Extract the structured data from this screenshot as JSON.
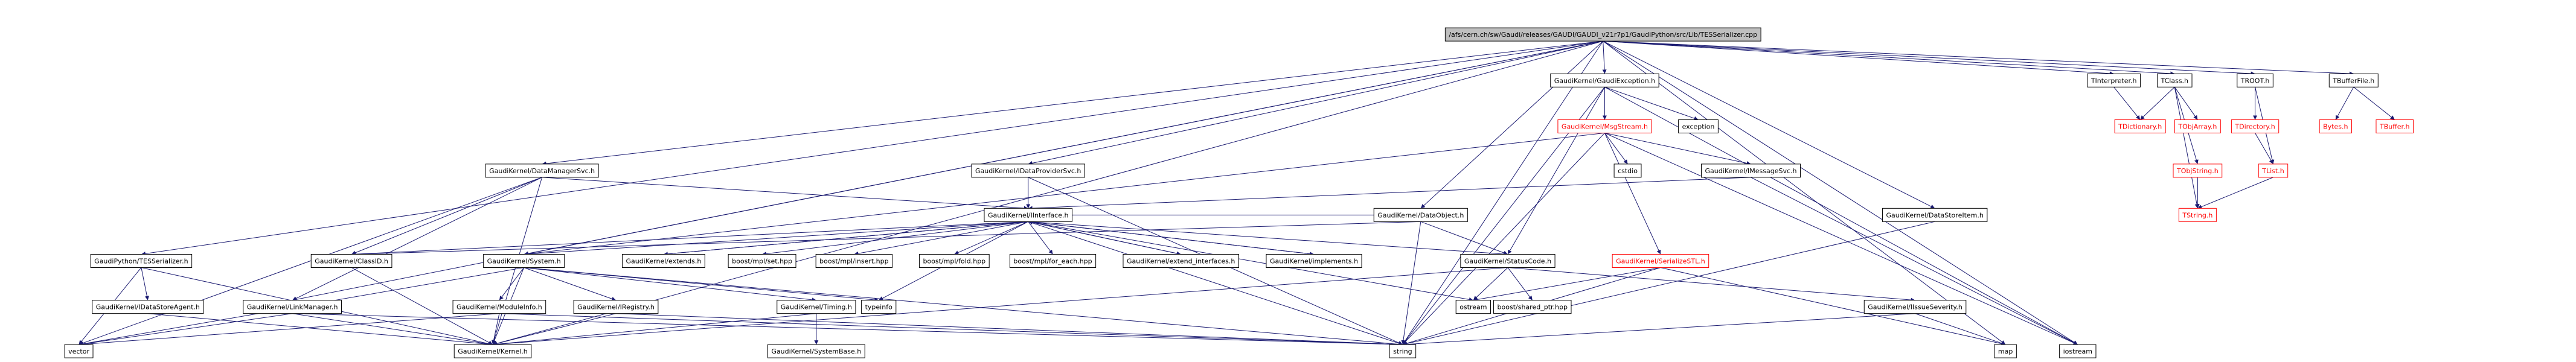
{
  "nodes": [
    {
      "label": "/afs/cern.ch/sw/Gaudi/releases/GAUDI/GAUDI_v21r7p1/GaudiPython/src/Lib/TESSerializer.cpp"
    },
    {
      "label": "GaudiKernel/GaudiException.h"
    },
    {
      "label": "TInterpreter.h"
    },
    {
      "label": "TClass.h"
    },
    {
      "label": "TROOT.h"
    },
    {
      "label": "TBufferFile.h"
    },
    {
      "label": "GaudiKernel/MsgStream.h"
    },
    {
      "label": "exception"
    },
    {
      "label": "TDictionary.h"
    },
    {
      "label": "TObjArray.h"
    },
    {
      "label": "TDirectory.h"
    },
    {
      "label": "Bytes.h"
    },
    {
      "label": "TBuffer.h"
    },
    {
      "label": "GaudiKernel/DataManagerSvc.h"
    },
    {
      "label": "GaudiKernel/IDataProviderSvc.h"
    },
    {
      "label": "cstdio"
    },
    {
      "label": "GaudiKernel/IMessageSvc.h"
    },
    {
      "label": "TObjString.h"
    },
    {
      "label": "TList.h"
    },
    {
      "label": "GaudiKernel/IInterface.h"
    },
    {
      "label": "GaudiKernel/DataObject.h"
    },
    {
      "label": "GaudiKernel/DataStoreItem.h"
    },
    {
      "label": "TString.h"
    },
    {
      "label": "GaudiPython/TESSerializer.h"
    },
    {
      "label": "GaudiKernel/ClassID.h"
    },
    {
      "label": "GaudiKernel/System.h"
    },
    {
      "label": "GaudiKernel/extends.h"
    },
    {
      "label": "boost/mpl/set.hpp"
    },
    {
      "label": "boost/mpl/insert.hpp"
    },
    {
      "label": "boost/mpl/fold.hpp"
    },
    {
      "label": "boost/mpl/for_each.hpp"
    },
    {
      "label": "GaudiKernel/extend_interfaces.h"
    },
    {
      "label": "GaudiKernel/implements.h"
    },
    {
      "label": "GaudiKernel/StatusCode.h"
    },
    {
      "label": "GaudiKernel/SerializeSTL.h"
    },
    {
      "label": "GaudiKernel/IDataStoreAgent.h"
    },
    {
      "label": "GaudiKernel/LinkManager.h"
    },
    {
      "label": "GaudiKernel/ModuleInfo.h"
    },
    {
      "label": "GaudiKernel/IRegistry.h"
    },
    {
      "label": "GaudiKernel/Timing.h"
    },
    {
      "label": "typeinfo"
    },
    {
      "label": "ostream"
    },
    {
      "label": "boost/shared_ptr.hpp"
    },
    {
      "label": "GaudiKernel/IIssueSeverity.h"
    },
    {
      "label": "vector"
    },
    {
      "label": "GaudiKernel/Kernel.h"
    },
    {
      "label": "GaudiKernel/SystemBase.h"
    },
    {
      "label": "string"
    },
    {
      "label": "map"
    },
    {
      "label": "iostream"
    }
  ]
}
